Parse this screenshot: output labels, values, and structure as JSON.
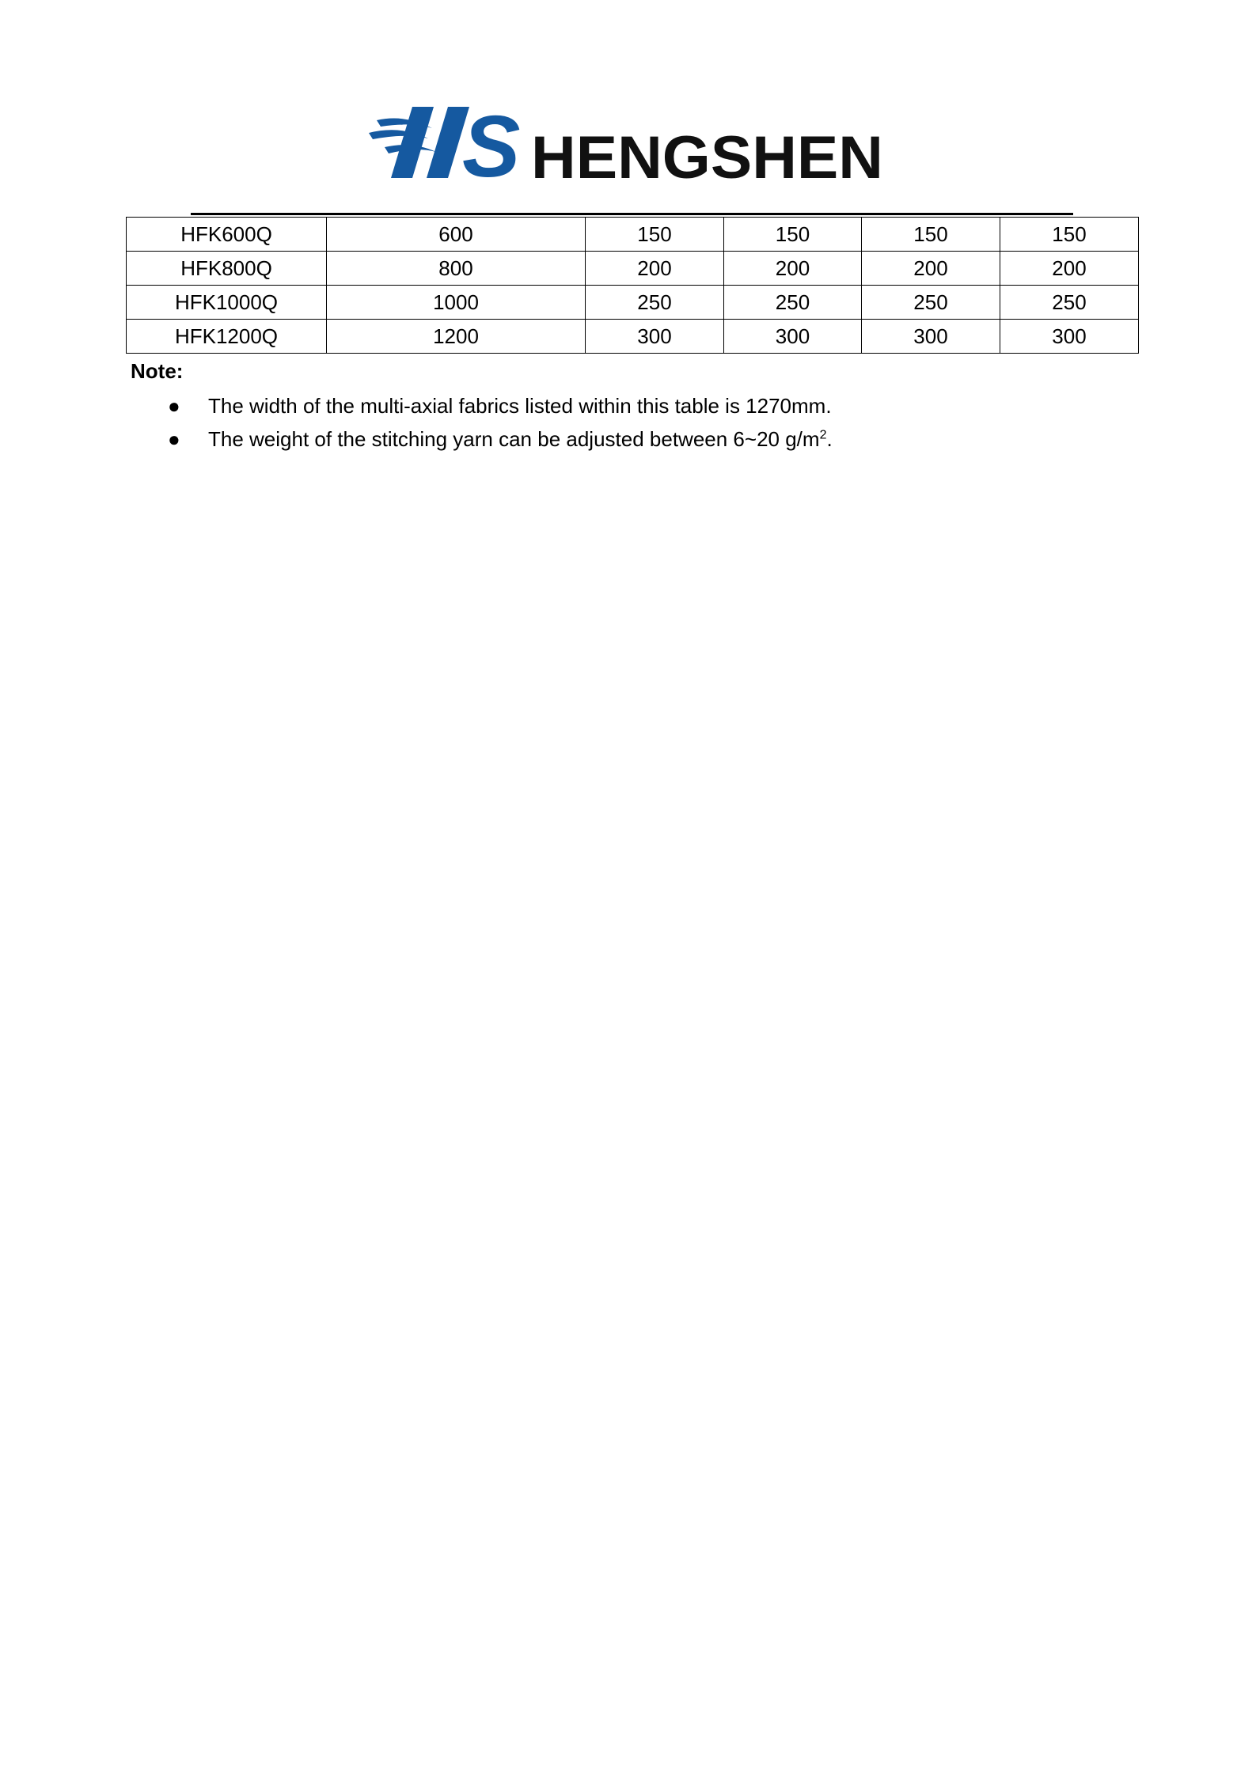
{
  "header": {
    "logo_text": "HS HENGSHEN",
    "brand_blue": "#1559a0"
  },
  "table": {
    "rows": [
      [
        "HFK600Q",
        "600",
        "150",
        "150",
        "150",
        "150"
      ],
      [
        "HFK800Q",
        "800",
        "200",
        "200",
        "200",
        "200"
      ],
      [
        "HFK1000Q",
        "1000",
        "250",
        "250",
        "250",
        "250"
      ],
      [
        "HFK1200Q",
        "1200",
        "300",
        "300",
        "300",
        "300"
      ]
    ]
  },
  "note": {
    "title": "Note:",
    "items": [
      "The width of the multi-axial fabrics listed within this table is 1270mm.",
      "The weight of the stitching yarn can be adjusted between 6~20 g/m"
    ],
    "superscript": "2",
    "trailing": "."
  }
}
